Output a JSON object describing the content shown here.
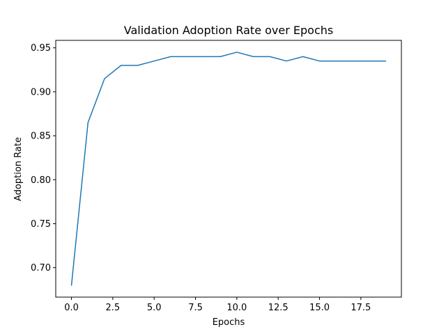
{
  "chart_data": {
    "type": "line",
    "title": "Validation Adoption Rate over Epochs",
    "xlabel": "Epochs",
    "ylabel": "Adoption Rate",
    "x": [
      0,
      1,
      2,
      3,
      4,
      5,
      6,
      7,
      8,
      9,
      10,
      11,
      12,
      13,
      14,
      15,
      16,
      17,
      18,
      19
    ],
    "series": [
      {
        "values": [
          0.68,
          0.865,
          0.915,
          0.93,
          0.93,
          0.935,
          0.94,
          0.94,
          0.94,
          0.94,
          0.945,
          0.94,
          0.94,
          0.935,
          0.94,
          0.935,
          0.935,
          0.935,
          0.935,
          0.935
        ],
        "color": "#1f77b4"
      }
    ],
    "xlim": [
      -0.95,
      19.95
    ],
    "ylim": [
      0.6665,
      0.9585
    ],
    "xticks": [
      "0.0",
      "2.5",
      "5.0",
      "7.5",
      "10.0",
      "12.5",
      "15.0",
      "17.5"
    ],
    "yticks": [
      "0.70",
      "0.75",
      "0.80",
      "0.85",
      "0.90",
      "0.95"
    ],
    "grid": false,
    "legend": false
  }
}
